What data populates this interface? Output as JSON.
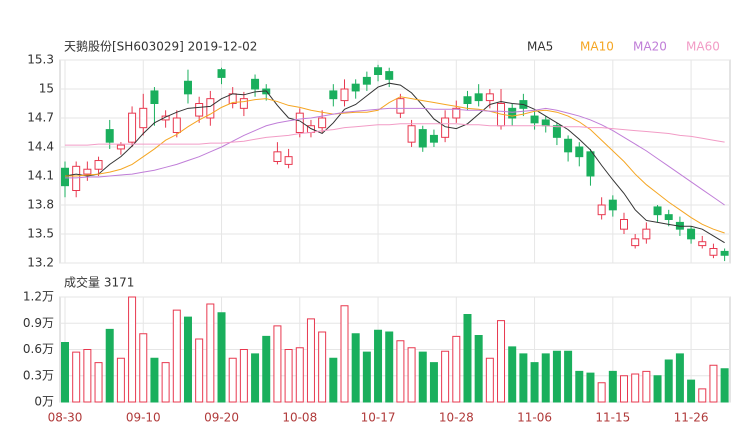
{
  "chart_data": [
    {
      "type": "candlestick",
      "title": "天鹅股份[SH603029] 2019-12-02",
      "categories": [
        "08-30",
        null,
        null,
        null,
        null,
        null,
        null,
        "09-10",
        null,
        null,
        null,
        null,
        null,
        null,
        "09-20",
        null,
        null,
        null,
        null,
        null,
        null,
        "10-08",
        null,
        null,
        null,
        null,
        null,
        null,
        "10-17",
        null,
        null,
        null,
        null,
        null,
        null,
        "10-28",
        null,
        null,
        null,
        null,
        null,
        null,
        "11-06",
        null,
        null,
        null,
        null,
        null,
        null,
        "11-15",
        null,
        null,
        null,
        null,
        null,
        null,
        "11-26",
        null,
        null,
        null
      ],
      "open": [
        14.18,
        13.95,
        14.12,
        14.17,
        14.58,
        14.38,
        14.45,
        14.6,
        14.98,
        14.68,
        14.55,
        15.08,
        14.72,
        14.7,
        15.2,
        14.85,
        14.8,
        15.1,
        15.0,
        14.25,
        14.22,
        14.55,
        14.55,
        14.6,
        14.98,
        14.88,
        15.05,
        15.12,
        15.22,
        15.18,
        14.75,
        14.45,
        14.58,
        14.52,
        14.5,
        14.7,
        14.92,
        14.95,
        14.88,
        14.62,
        14.8,
        14.88,
        14.72,
        14.68,
        14.62,
        14.48,
        14.4,
        14.35,
        13.7,
        13.85,
        13.55,
        13.38,
        13.45,
        13.78,
        13.7,
        13.62,
        13.55,
        13.38,
        13.28,
        13.32
      ],
      "high": [
        14.25,
        14.25,
        14.25,
        14.3,
        14.68,
        14.45,
        14.82,
        14.95,
        15.02,
        14.78,
        14.78,
        15.2,
        14.92,
        14.98,
        15.22,
        15.02,
        14.97,
        15.15,
        15.05,
        14.45,
        14.38,
        14.8,
        14.68,
        14.78,
        15.05,
        15.1,
        15.1,
        15.18,
        15.25,
        15.22,
        14.95,
        14.68,
        14.62,
        14.58,
        14.78,
        14.88,
        14.98,
        15.05,
        15.0,
        15.0,
        14.85,
        14.95,
        14.78,
        14.72,
        14.65,
        14.52,
        14.45,
        14.38,
        13.88,
        13.9,
        13.72,
        13.5,
        13.62,
        13.8,
        13.75,
        13.68,
        13.58,
        13.48,
        13.4,
        13.35
      ],
      "low": [
        13.88,
        13.88,
        14.05,
        14.1,
        14.38,
        14.32,
        14.4,
        14.52,
        14.62,
        14.6,
        14.5,
        14.85,
        14.65,
        14.62,
        15.05,
        14.8,
        14.72,
        14.92,
        14.88,
        14.22,
        14.18,
        14.5,
        14.5,
        14.55,
        14.82,
        14.82,
        14.9,
        14.98,
        15.08,
        15.02,
        14.7,
        14.4,
        14.35,
        14.4,
        14.45,
        14.65,
        14.78,
        14.82,
        14.8,
        14.58,
        14.62,
        14.72,
        14.58,
        14.55,
        14.42,
        14.25,
        14.2,
        14.0,
        13.65,
        13.68,
        13.5,
        13.35,
        13.4,
        13.62,
        13.58,
        13.48,
        13.4,
        13.35,
        13.25,
        13.22
      ],
      "close": [
        14.0,
        14.2,
        14.17,
        14.26,
        14.45,
        14.42,
        14.75,
        14.8,
        14.85,
        14.72,
        14.7,
        14.95,
        14.85,
        14.9,
        15.12,
        14.95,
        14.9,
        15.0,
        14.95,
        14.35,
        14.3,
        14.75,
        14.62,
        14.7,
        14.9,
        15.0,
        14.98,
        15.05,
        15.15,
        15.1,
        14.9,
        14.62,
        14.4,
        14.45,
        14.7,
        14.8,
        14.85,
        14.88,
        14.95,
        14.85,
        14.7,
        14.8,
        14.65,
        14.62,
        14.5,
        14.35,
        14.3,
        14.1,
        13.8,
        13.75,
        13.65,
        13.45,
        13.55,
        13.7,
        13.65,
        13.55,
        13.45,
        13.42,
        13.35,
        13.28
      ],
      "up_color": "#e8384f",
      "down_color": "#1aaf5d",
      "series": [
        {
          "name": "MA5",
          "color": "#333333",
          "values": [
            14.1,
            14.12,
            14.1,
            14.12,
            14.22,
            14.3,
            14.41,
            14.54,
            14.65,
            14.71,
            14.76,
            14.8,
            14.81,
            14.82,
            14.9,
            14.95,
            14.94,
            14.97,
            14.98,
            14.83,
            14.7,
            14.67,
            14.59,
            14.54,
            14.65,
            14.79,
            14.84,
            14.93,
            15.02,
            15.06,
            15.04,
            14.96,
            14.83,
            14.69,
            14.61,
            14.59,
            14.64,
            14.74,
            14.84,
            14.87,
            14.85,
            14.84,
            14.79,
            14.72,
            14.65,
            14.58,
            14.48,
            14.37,
            14.21,
            14.06,
            13.92,
            13.75,
            13.64,
            13.62,
            13.6,
            13.58,
            13.58,
            13.55,
            13.48,
            13.41
          ]
        },
        {
          "name": "MA10",
          "color": "#f5a623",
          "values": [
            14.1,
            14.1,
            14.11,
            14.12,
            14.14,
            14.17,
            14.22,
            14.3,
            14.38,
            14.47,
            14.53,
            14.61,
            14.68,
            14.74,
            14.81,
            14.86,
            14.87,
            14.89,
            14.9,
            14.87,
            14.83,
            14.81,
            14.78,
            14.76,
            14.74,
            14.75,
            14.76,
            14.76,
            14.78,
            14.86,
            14.92,
            14.9,
            14.88,
            14.86,
            14.84,
            14.82,
            14.8,
            14.79,
            14.77,
            14.74,
            14.72,
            14.74,
            14.77,
            14.78,
            14.76,
            14.72,
            14.66,
            14.58,
            14.47,
            14.36,
            14.25,
            14.12,
            14.01,
            13.92,
            13.83,
            13.75,
            13.67,
            13.6,
            13.55,
            13.51
          ]
        },
        {
          "name": "MA20",
          "color": "#c07ed8",
          "values": [
            14.08,
            14.08,
            14.09,
            14.09,
            14.1,
            14.11,
            14.12,
            14.14,
            14.16,
            14.19,
            14.22,
            14.26,
            14.3,
            14.35,
            14.4,
            14.46,
            14.52,
            14.57,
            14.62,
            14.65,
            14.67,
            14.69,
            14.7,
            14.72,
            14.74,
            14.76,
            14.77,
            14.78,
            14.79,
            14.8,
            14.8,
            14.8,
            14.8,
            14.79,
            14.79,
            14.79,
            14.78,
            14.78,
            14.77,
            14.77,
            14.76,
            14.77,
            14.78,
            14.8,
            14.78,
            14.75,
            14.72,
            14.68,
            14.63,
            14.57,
            14.5,
            14.43,
            14.36,
            14.28,
            14.2,
            14.12,
            14.04,
            13.96,
            13.88,
            13.8
          ]
        },
        {
          "name": "MA60",
          "color": "#f29cc6",
          "values": [
            14.42,
            14.42,
            14.42,
            14.43,
            14.43,
            14.43,
            14.43,
            14.43,
            14.43,
            14.43,
            14.43,
            14.43,
            14.43,
            14.44,
            14.44,
            14.45,
            14.46,
            14.48,
            14.5,
            14.51,
            14.52,
            14.54,
            14.55,
            14.57,
            14.58,
            14.6,
            14.61,
            14.62,
            14.63,
            14.63,
            14.64,
            14.64,
            14.64,
            14.64,
            14.64,
            14.64,
            14.63,
            14.63,
            14.62,
            14.62,
            14.62,
            14.62,
            14.62,
            14.62,
            14.61,
            14.61,
            14.61,
            14.6,
            14.6,
            14.59,
            14.58,
            14.57,
            14.56,
            14.55,
            14.54,
            14.52,
            14.51,
            14.49,
            14.47,
            14.45
          ]
        }
      ],
      "ylim": [
        13.2,
        15.3
      ],
      "yticks": [
        13.2,
        13.5,
        13.8,
        14.1,
        14.4,
        14.7,
        15,
        15.3
      ],
      "grid": true
    },
    {
      "type": "bar",
      "title": "成交量 3171",
      "values": [
        0.68,
        0.57,
        0.6,
        0.45,
        0.83,
        0.5,
        1.2,
        0.78,
        0.5,
        0.45,
        1.05,
        0.97,
        0.72,
        1.12,
        1.02,
        0.5,
        0.6,
        0.55,
        0.75,
        0.87,
        0.6,
        0.62,
        0.95,
        0.8,
        0.5,
        1.1,
        0.78,
        0.57,
        0.82,
        0.8,
        0.7,
        0.62,
        0.57,
        0.45,
        0.58,
        0.75,
        1.0,
        0.76,
        0.5,
        0.93,
        0.63,
        0.55,
        0.45,
        0.55,
        0.58,
        0.58,
        0.35,
        0.33,
        0.22,
        0.35,
        0.3,
        0.32,
        0.35,
        0.3,
        0.48,
        0.55,
        0.25,
        0.15,
        0.42,
        0.38
      ],
      "ylim": [
        0,
        1.2
      ],
      "yticks": [
        {
          "value": 1.2,
          "label": "1.2万"
        },
        {
          "value": 0.9,
          "label": "0.9万"
        },
        {
          "value": 0.6,
          "label": "0.6万"
        },
        {
          "value": 0.3,
          "label": "0.3万"
        },
        {
          "value": 0,
          "label": "0万"
        }
      ],
      "grid": true
    }
  ]
}
